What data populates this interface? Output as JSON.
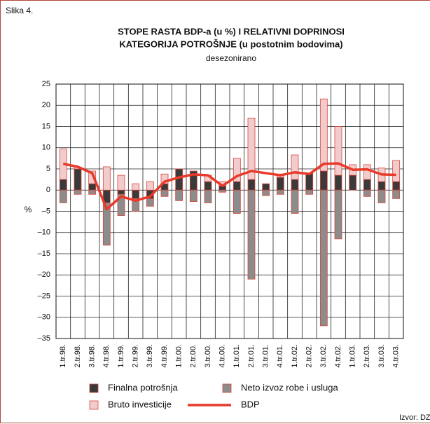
{
  "chart_data": {
    "type": "bar",
    "figure_label": "Slika 4.",
    "title": [
      "STOPE RASTA BDP-a (u %) I RELATIVNI DOPRINOSI",
      "KATEGORIJA POTROŠNJE (u postotnim bodovima)"
    ],
    "subtitle": "desezonirano",
    "ylabel": "%",
    "source": "Izvor: DZS",
    "categories": [
      "1.tr.98.",
      "2.tr.98.",
      "3.tr.98.",
      "4.tr.98.",
      "1.tr.99.",
      "2.tr.99.",
      "3.tr.99.",
      "4.tr.99.",
      "1.tr.00.",
      "2.tr.00.",
      "3.tr.00.",
      "4.tr.00.",
      "1.tr.01.",
      "2.tr.01.",
      "3.tr.01.",
      "4.tr.01.",
      "1.tr.02.",
      "2.tr.02.",
      "3.tr.02.",
      "4.tr.02.",
      "1.tr.03.",
      "2.tr.03.",
      "3.tr.03.",
      "4.tr.03."
    ],
    "series": [
      {
        "name": "Finalna potrošnja",
        "type": "bar",
        "color": "#3a3a3a",
        "values": [
          2.5,
          5,
          1.5,
          -3,
          -1,
          -2,
          -2,
          1.5,
          5,
          4.5,
          2,
          1,
          2,
          2.5,
          1.5,
          3,
          2.5,
          4,
          4.5,
          3.5,
          3.5,
          2.5,
          2,
          2
        ]
      },
      {
        "name": "Neto izvoz robe i usluga",
        "type": "bar",
        "color": "#8c8c8c",
        "values": [
          -3,
          -1,
          -1,
          -10,
          -5,
          -3,
          -1.8,
          -1.5,
          -2.5,
          -2.7,
          -3,
          -0.5,
          -5.5,
          -21,
          -1.3,
          -1,
          -5.5,
          -1,
          -32,
          -11.5,
          0,
          -1.5,
          -3,
          -2
        ]
      },
      {
        "name": "Bruto investicije",
        "type": "bar",
        "color": "#f2cccc",
        "values": [
          7.2,
          0.4,
          3,
          5.5,
          3.5,
          1.5,
          2,
          2.3,
          0,
          0,
          1.5,
          1,
          5.5,
          14.5,
          0,
          0.8,
          5.8,
          0,
          17,
          11.5,
          2.5,
          3.5,
          3.2,
          5
        ]
      },
      {
        "name": "BDP",
        "type": "line",
        "color": "#e8392a",
        "values": [
          6.2,
          5.5,
          4,
          -4.5,
          -1.5,
          -2.5,
          -1.5,
          2,
          3,
          3.7,
          3.5,
          1,
          3.3,
          4.5,
          4,
          3.5,
          4.2,
          3.8,
          6.2,
          6.3,
          4.8,
          4.9,
          3.7,
          3.6
        ]
      }
    ],
    "ylim": [
      -35,
      25
    ],
    "yticks": [
      {
        "value": -35,
        "label": "–35"
      },
      {
        "value": -30,
        "label": "–30"
      },
      {
        "value": -25,
        "label": "–25"
      },
      {
        "value": -20,
        "label": "–20"
      },
      {
        "value": -15,
        "label": "–15"
      },
      {
        "value": -10,
        "label": "–10"
      },
      {
        "value": -5,
        "label": "–5"
      },
      0,
      5,
      10,
      15,
      20,
      25
    ],
    "grid": true
  }
}
